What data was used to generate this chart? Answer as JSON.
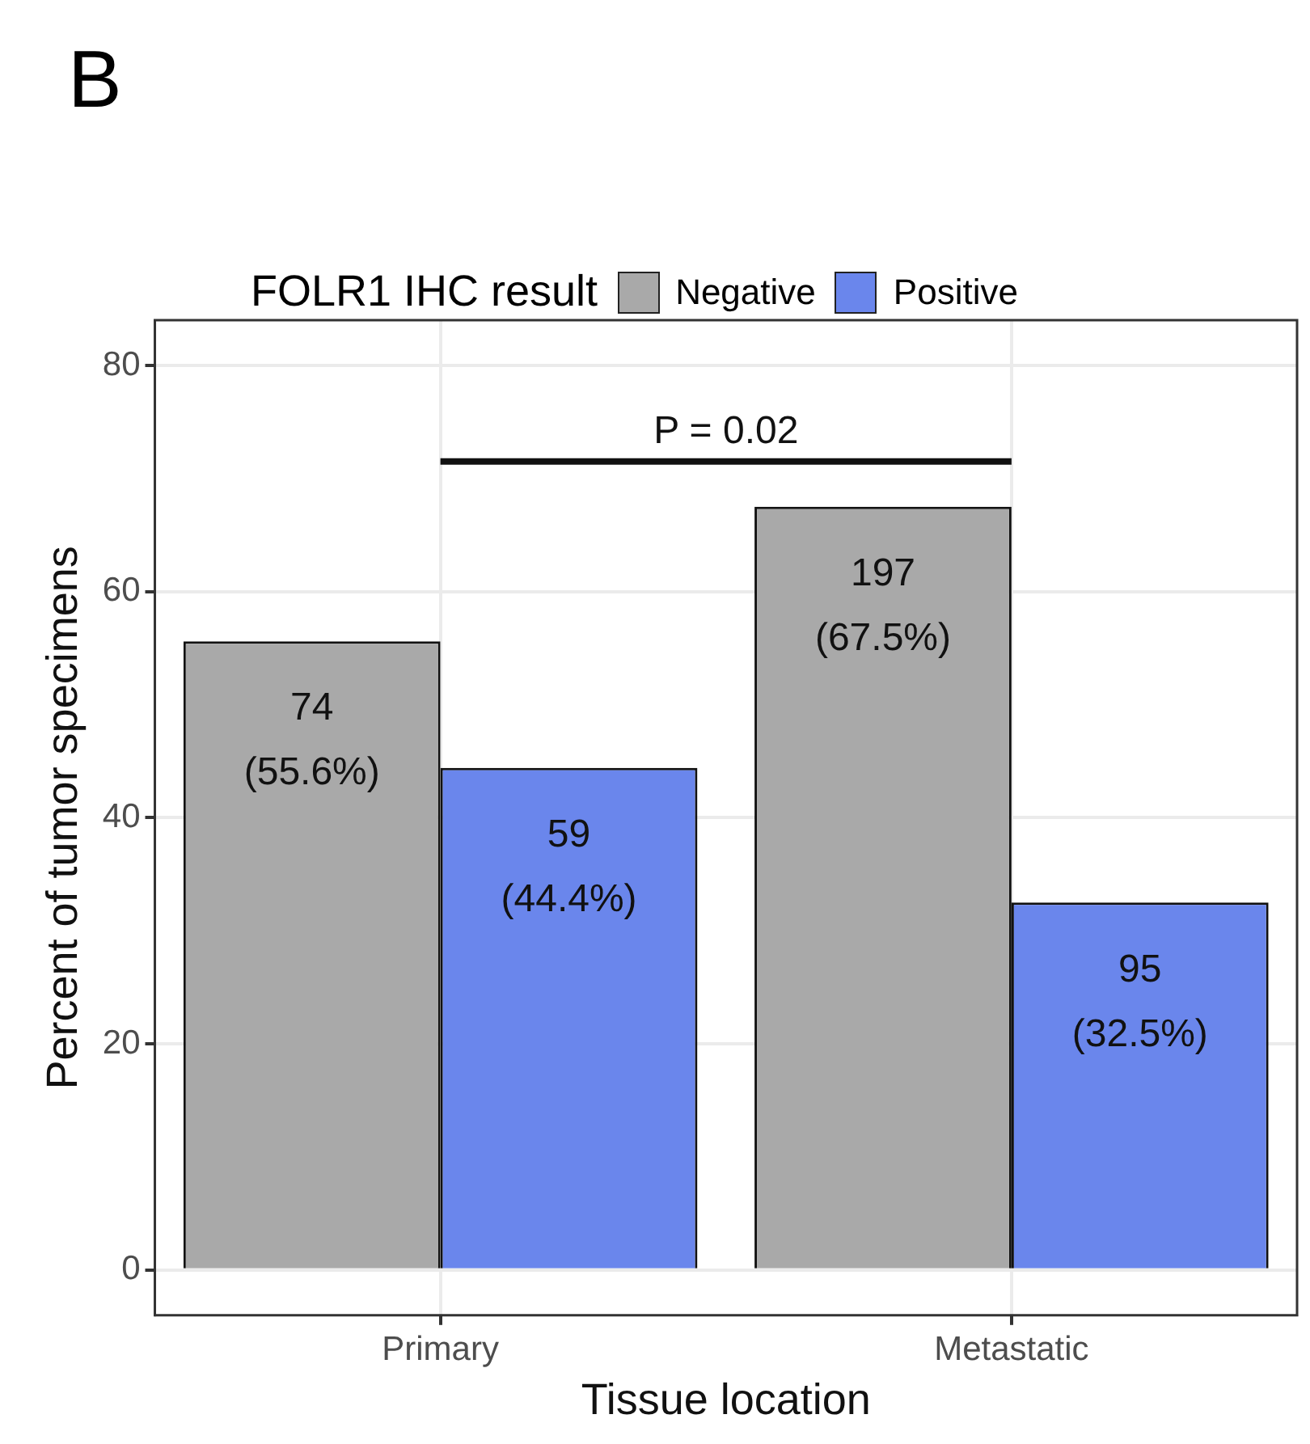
{
  "chart_data": {
    "type": "bar",
    "title": "B",
    "legend_title": "FOLR1 IHC result",
    "xlabel": "Tissue location",
    "ylabel": "Percent of tumor specimens",
    "categories": [
      "Primary",
      "Metastatic"
    ],
    "series": [
      {
        "name": "Negative",
        "color": "#a9a9a9",
        "values": [
          55.6,
          67.5
        ],
        "value_labels": [
          "74\n(55.6%)",
          "197\n(67.5%)"
        ]
      },
      {
        "name": "Positive",
        "color": "#6a86ec",
        "values": [
          44.4,
          32.5
        ],
        "value_labels": [
          "59\n(44.4%)",
          "95\n(32.5%)"
        ]
      }
    ],
    "ylim": [
      -4,
      84
    ],
    "yticks": [
      0,
      20,
      40,
      60,
      80
    ],
    "grid": true,
    "legend": "top",
    "annotations": [
      "P = 0.02"
    ]
  }
}
